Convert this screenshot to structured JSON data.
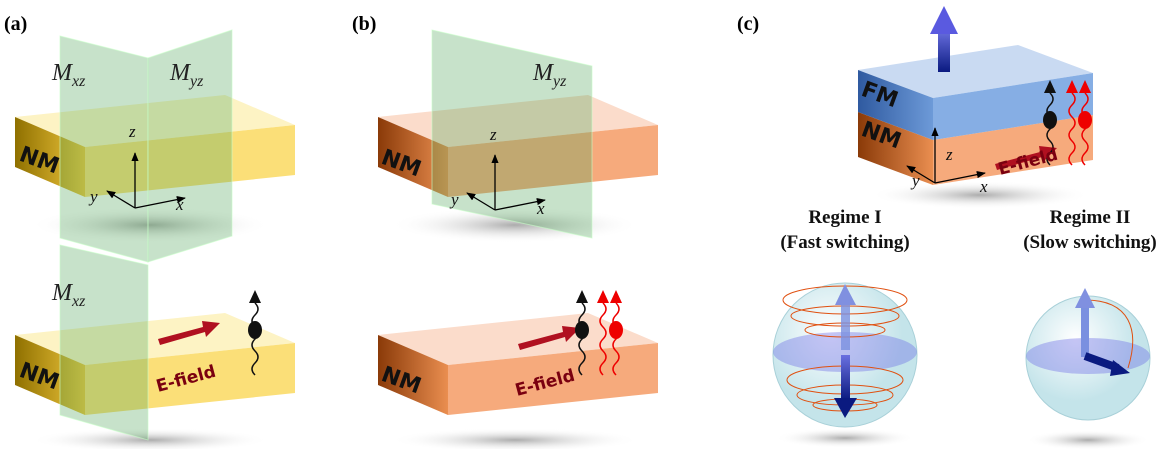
{
  "panels": [
    {
      "label": "(a)",
      "top": {
        "planes": [
          {
            "symbol": "M",
            "subscript": "xz"
          },
          {
            "symbol": "M",
            "subscript": "yz"
          }
        ],
        "block": "NM",
        "axes": [
          "z",
          "y",
          "x"
        ]
      },
      "bottom": {
        "planes": [
          {
            "symbol": "M",
            "subscript": "xz"
          }
        ],
        "block": "NM",
        "field": "E-field"
      }
    },
    {
      "label": "(b)",
      "top": {
        "planes": [
          {
            "symbol": "M",
            "subscript": "yz"
          }
        ],
        "block": "NM",
        "axes": [
          "z",
          "y",
          "x"
        ]
      },
      "bottom": {
        "block": "NM",
        "field": "E-field"
      }
    },
    {
      "label": "(c)",
      "stack": {
        "layers": [
          "FM",
          "NM"
        ],
        "axes": [
          "z",
          "y",
          "x"
        ],
        "field": "E-field"
      },
      "regimes": [
        {
          "title": "Regime I",
          "subtitle": "(Fast switching)"
        },
        {
          "title": "Regime II",
          "subtitle": "(Slow switching)"
        }
      ]
    }
  ]
}
